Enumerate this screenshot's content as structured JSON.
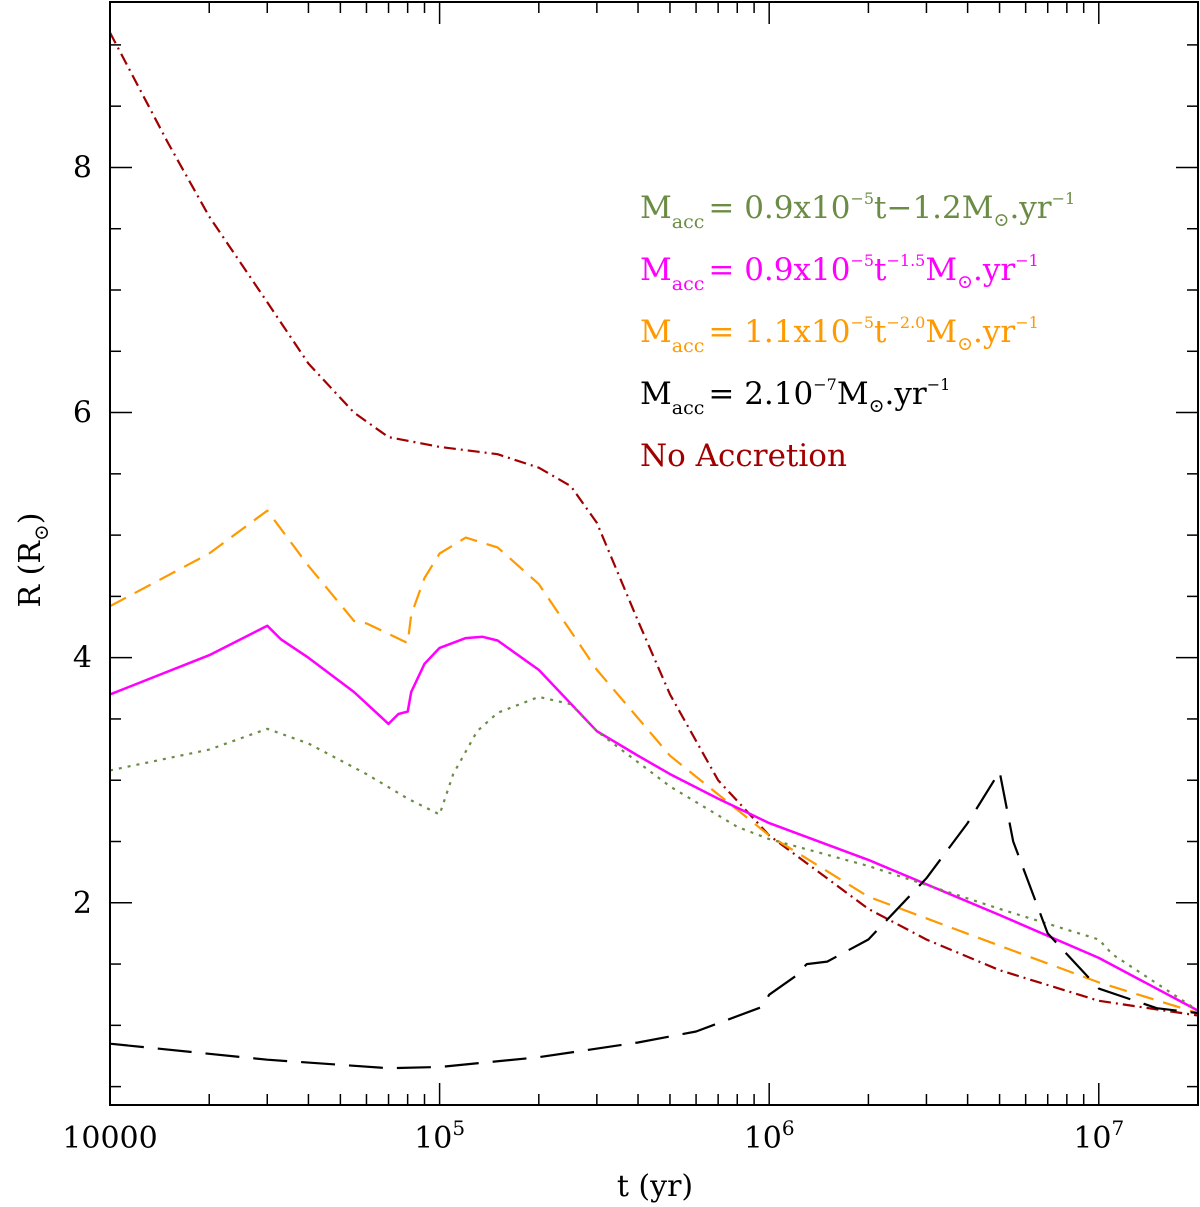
{
  "chart_data": {
    "type": "line",
    "x_scale": "log",
    "xlim": [
      10000,
      20000000
    ],
    "ylim": [
      0.35,
      9.35
    ],
    "xlabel": "t   (yr)",
    "ylabel": "R  (R",
    "ylabel_sub": "⊙",
    "ylabel_close": ")",
    "x_ticks": [
      {
        "value": 10000,
        "base": "10000",
        "exp": ""
      },
      {
        "value": 100000,
        "base": "10",
        "exp": "5"
      },
      {
        "value": 1000000,
        "base": "10",
        "exp": "6"
      },
      {
        "value": 10000000,
        "base": "10",
        "exp": "7"
      }
    ],
    "y_ticks": [
      {
        "value": 2,
        "label": "2"
      },
      {
        "value": 4,
        "label": "4"
      },
      {
        "value": 6,
        "label": "6"
      },
      {
        "value": 8,
        "label": "8"
      }
    ],
    "legend": [
      {
        "main": "M",
        "sub": "acc",
        "text": "= 0.9x10",
        "sup": "−5",
        "text2": "t−1.2M",
        "sub2": "⊙",
        "text3": ".yr",
        "sup2": "−1",
        "color": "#6b8c45"
      },
      {
        "main": "M",
        "sub": "acc",
        "text": "= 0.9x10",
        "sup": "−5",
        "text2": "t",
        "sup_mid": "−1.5",
        "text2b": "M",
        "sub2": "⊙",
        "text3": ".yr",
        "sup2": "−1",
        "color": "#ff00ff"
      },
      {
        "main": "M",
        "sub": "acc",
        "text": "= 1.1x10",
        "sup": "−5",
        "text2": "t",
        "sup_mid": "−2.0",
        "text2b": "M",
        "sub2": "⊙",
        "text3": ".yr",
        "sup2": "−1",
        "color": "#ff9900"
      },
      {
        "main": "M",
        "sub": "acc",
        "text": "= 2.10",
        "sup": "−7",
        "text2": "M",
        "sub2": "⊙",
        "text3": ".yr",
        "sup2": "−1",
        "color": "#000000"
      },
      {
        "main": "No Accretion",
        "color": "#a00000"
      }
    ],
    "series": [
      {
        "style": "dashdot",
        "color": "#a00000",
        "x": [
          10000,
          15000,
          20000,
          30000,
          40000,
          55000,
          70000,
          100000,
          150000,
          200000,
          250000,
          300000,
          400000,
          500000,
          700000,
          1000000,
          2000000,
          3000000,
          5000000,
          10000000,
          20000000
        ],
        "y": [
          9.1,
          8.2,
          7.6,
          6.9,
          6.4,
          6.0,
          5.8,
          5.72,
          5.66,
          5.55,
          5.4,
          5.1,
          4.3,
          3.7,
          3.0,
          2.55,
          1.95,
          1.7,
          1.45,
          1.2,
          1.08
        ]
      },
      {
        "style": "dashed",
        "color": "#ff9900",
        "x": [
          10000,
          20000,
          30000,
          40000,
          55000,
          60000,
          80000,
          82000,
          90000,
          100000,
          120000,
          150000,
          200000,
          300000,
          500000,
          1000000,
          2000000,
          5000000,
          10000000,
          20000000
        ],
        "y": [
          4.42,
          4.85,
          5.2,
          4.75,
          4.3,
          4.28,
          4.12,
          4.35,
          4.65,
          4.85,
          4.98,
          4.9,
          4.6,
          3.9,
          3.2,
          2.55,
          2.05,
          1.65,
          1.35,
          1.1
        ]
      },
      {
        "style": "solid",
        "color": "#ff00ff",
        "x": [
          10000,
          20000,
          30000,
          33000,
          40000,
          55000,
          70000,
          75000,
          80000,
          82000,
          90000,
          100000,
          120000,
          135000,
          150000,
          200000,
          300000,
          400000,
          500000,
          700000,
          1000000,
          2000000,
          5000000,
          10000000,
          20000000
        ],
        "y": [
          3.7,
          4.02,
          4.26,
          4.15,
          4.0,
          3.72,
          3.46,
          3.54,
          3.56,
          3.72,
          3.95,
          4.08,
          4.16,
          4.17,
          4.14,
          3.9,
          3.4,
          3.2,
          3.05,
          2.85,
          2.65,
          2.35,
          1.9,
          1.55,
          1.12
        ]
      },
      {
        "style": "dotted",
        "color": "#6b8c45",
        "x": [
          10000,
          20000,
          30000,
          40000,
          60000,
          80000,
          100000,
          110000,
          130000,
          150000,
          200000,
          250000,
          300000,
          500000,
          800000,
          1000000,
          2000000,
          5000000,
          10000000,
          11000000,
          20000000
        ],
        "y": [
          3.08,
          3.25,
          3.42,
          3.3,
          3.05,
          2.85,
          2.72,
          3.05,
          3.4,
          3.55,
          3.68,
          3.62,
          3.4,
          2.95,
          2.62,
          2.52,
          2.3,
          1.95,
          1.7,
          1.58,
          1.12
        ]
      },
      {
        "style": "longdash",
        "color": "#000000",
        "x": [
          10000,
          30000,
          70000,
          100000,
          200000,
          400000,
          600000,
          950000,
          1000000,
          1200000,
          1300000,
          1500000,
          2000000,
          3000000,
          4000000,
          5000000,
          5500000,
          7000000,
          10000000,
          15000000,
          20000000
        ],
        "y": [
          0.85,
          0.72,
          0.65,
          0.66,
          0.74,
          0.86,
          0.95,
          1.15,
          1.25,
          1.4,
          1.5,
          1.52,
          1.7,
          2.2,
          2.65,
          3.07,
          2.5,
          1.75,
          1.3,
          1.14,
          1.1
        ]
      }
    ]
  }
}
